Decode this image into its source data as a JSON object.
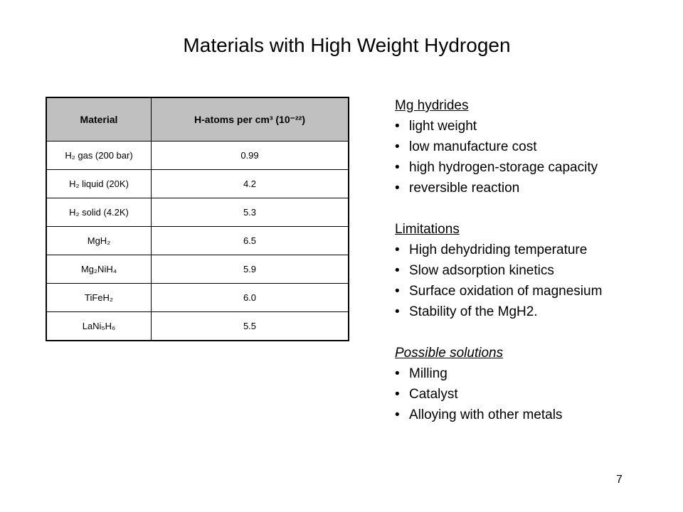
{
  "title": "Materials with High Weight Hydrogen",
  "table": {
    "header": [
      "Material",
      "H-atoms per cm³ (10⁻²²)"
    ],
    "rows": [
      [
        "H₂ gas (200 bar)",
        "0.99"
      ],
      [
        "H₂ liquid (20K)",
        "4.2"
      ],
      [
        "H₂ solid (4.2K)",
        "5.3"
      ],
      [
        "MgH₂",
        "6.5"
      ],
      [
        "Mg₂NiH₄",
        "5.9"
      ],
      [
        "TiFeH₂",
        "6.0"
      ],
      [
        "LaNi₅H₆",
        "5.5"
      ]
    ]
  },
  "notes": [
    {
      "heading": "Mg hydrides",
      "items": [
        "light weight",
        "low manufacture cost",
        "high hydrogen-storage capacity",
        "reversible reaction"
      ]
    },
    {
      "heading": "Limitations",
      "items": [
        "High dehydriding temperature",
        "Slow adsorption kinetics",
        "Surface oxidation of magnesium",
        "Stability of the MgH2."
      ]
    },
    {
      "heading": "Possible solutions",
      "items": [
        "Milling",
        "Catalyst",
        "Alloying with other metals"
      ]
    }
  ],
  "page_number": "7"
}
